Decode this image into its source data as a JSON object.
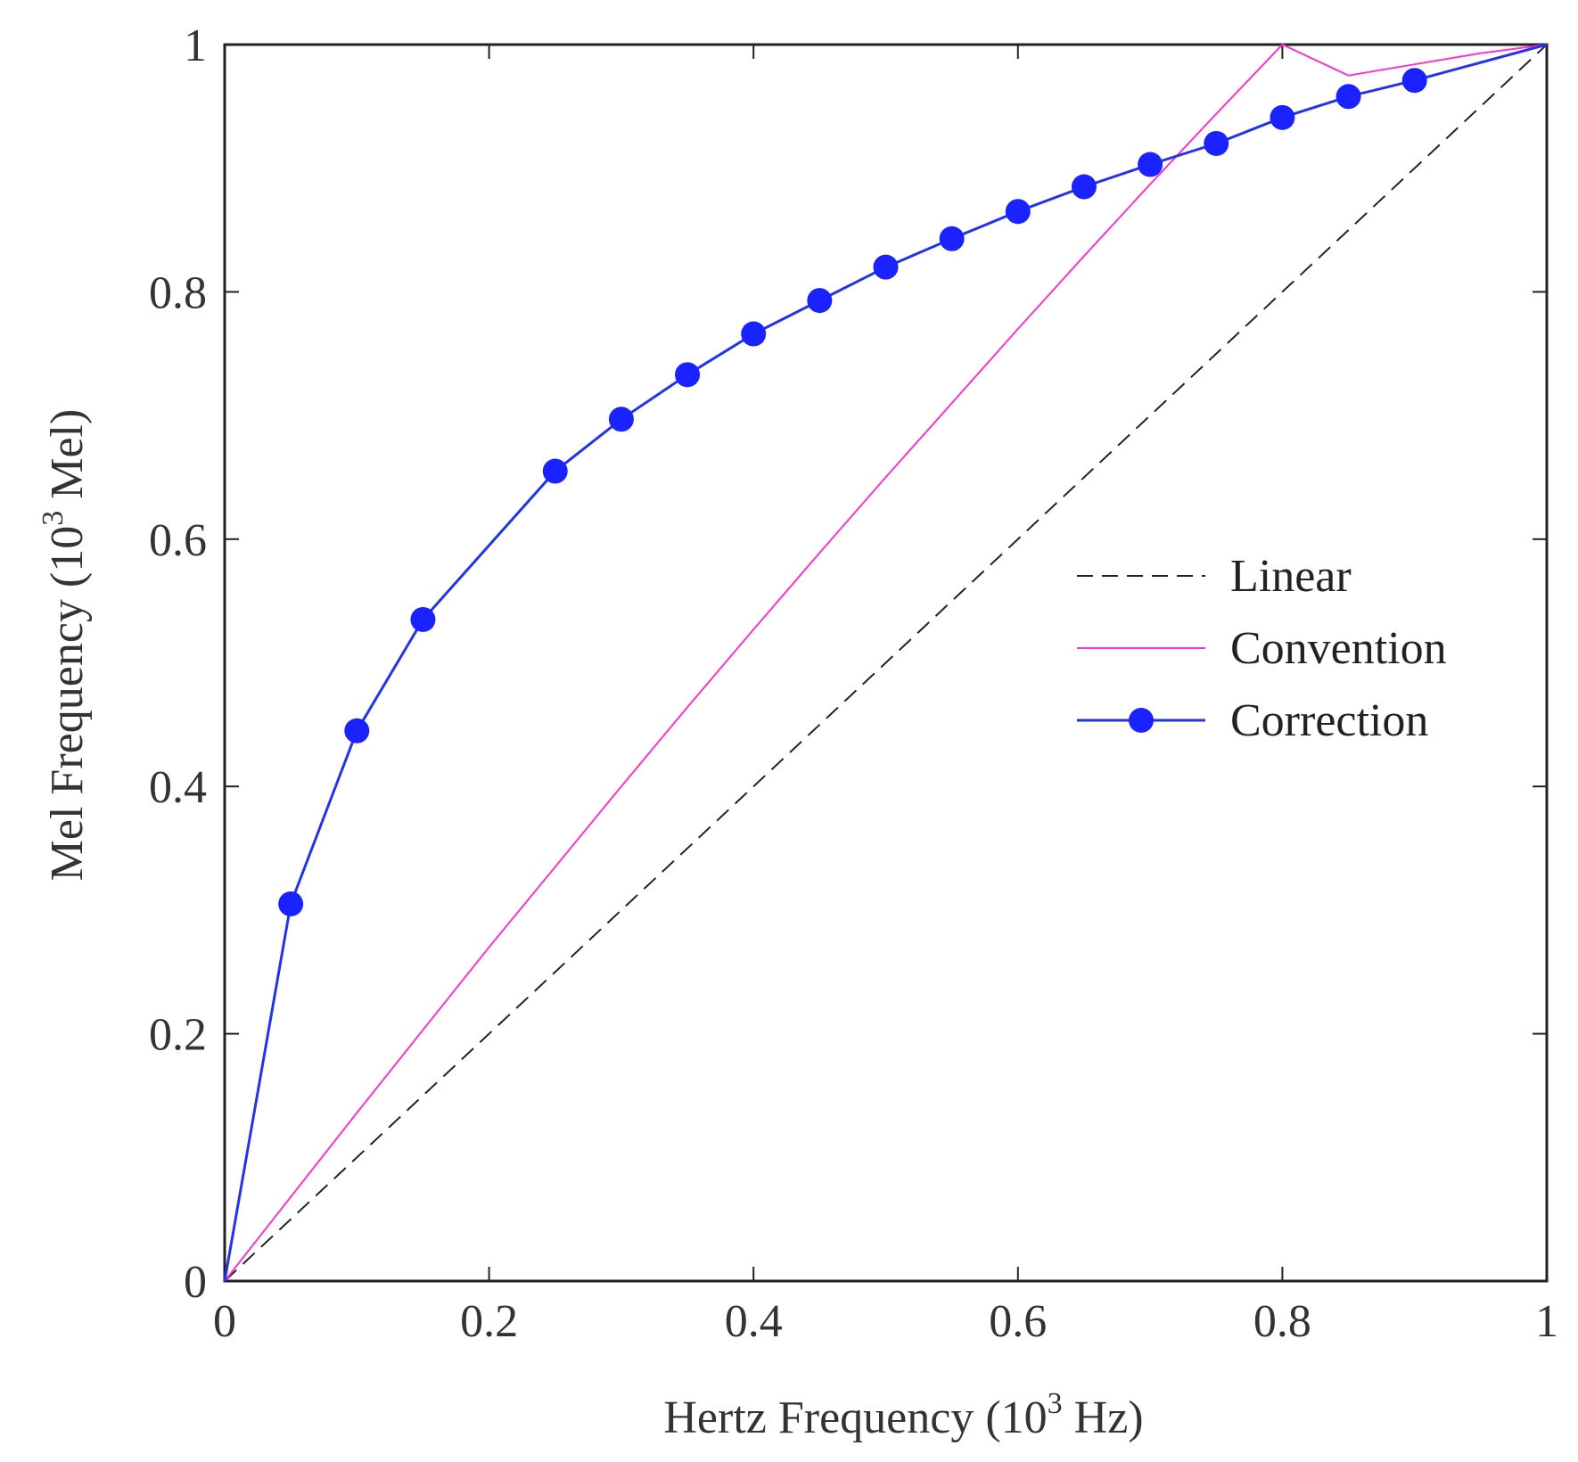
{
  "chart_data": {
    "type": "line",
    "title": "",
    "xlabel": {
      "main": "Hertz Frequency",
      "unit_open": "(10",
      "unit_exp": "3",
      "unit_close": " Hz)"
    },
    "ylabel": {
      "main": "Mel Frequency",
      "unit_open": "(10",
      "unit_exp": "3",
      "unit_close": " Mel)"
    },
    "xlim": [
      0,
      1
    ],
    "ylim": [
      0,
      1
    ],
    "xticks": [
      0,
      0.2,
      0.4,
      0.6,
      0.8,
      1
    ],
    "yticks": [
      0,
      0.2,
      0.4,
      0.6,
      0.8,
      1
    ],
    "xtick_labels": [
      "0",
      "0.2",
      "0.4",
      "0.6",
      "0.8",
      "1"
    ],
    "ytick_labels": [
      "0",
      "0.2",
      "0.4",
      "0.6",
      "0.8",
      "1"
    ],
    "grid": false,
    "legend_position": "right-middle",
    "series": [
      {
        "name": "Linear",
        "color": "#222222",
        "style": "dashed",
        "markers": false,
        "x": [
          0,
          1
        ],
        "y": [
          0,
          1
        ]
      },
      {
        "name": "Convention",
        "color": "#ff33cc",
        "style": "solid",
        "markers": false,
        "x": [
          0,
          0.05,
          0.1,
          0.15,
          0.2,
          0.25,
          0.3,
          0.35,
          0.4,
          0.45,
          0.5,
          0.55,
          0.6,
          0.65,
          0.7,
          0.75,
          0.8,
          0.85,
          0.9,
          0.95,
          1
        ],
        "y": [
          0,
          0.068,
          0.136,
          0.203,
          0.27,
          0.335,
          0.4,
          0.464,
          0.527,
          0.589,
          0.65,
          0.71,
          0.77,
          0.829,
          0.887,
          0.944,
          1.0,
          0.975,
          0.984,
          0.993,
          1.0
        ]
      },
      {
        "name": "Correction",
        "color": "#2233ee",
        "style": "solid",
        "markers": true,
        "marker_color": "#1a22ff",
        "x": [
          0,
          0.05,
          0.1,
          0.15,
          0.25,
          0.3,
          0.35,
          0.4,
          0.45,
          0.5,
          0.55,
          0.6,
          0.65,
          0.7,
          0.75,
          0.8,
          0.85,
          0.9,
          1
        ],
        "y": [
          0,
          0.305,
          0.445,
          0.535,
          0.655,
          0.697,
          0.733,
          0.766,
          0.793,
          0.82,
          0.843,
          0.865,
          0.885,
          0.903,
          0.92,
          0.941,
          0.958,
          0.971,
          1.0
        ]
      }
    ]
  }
}
